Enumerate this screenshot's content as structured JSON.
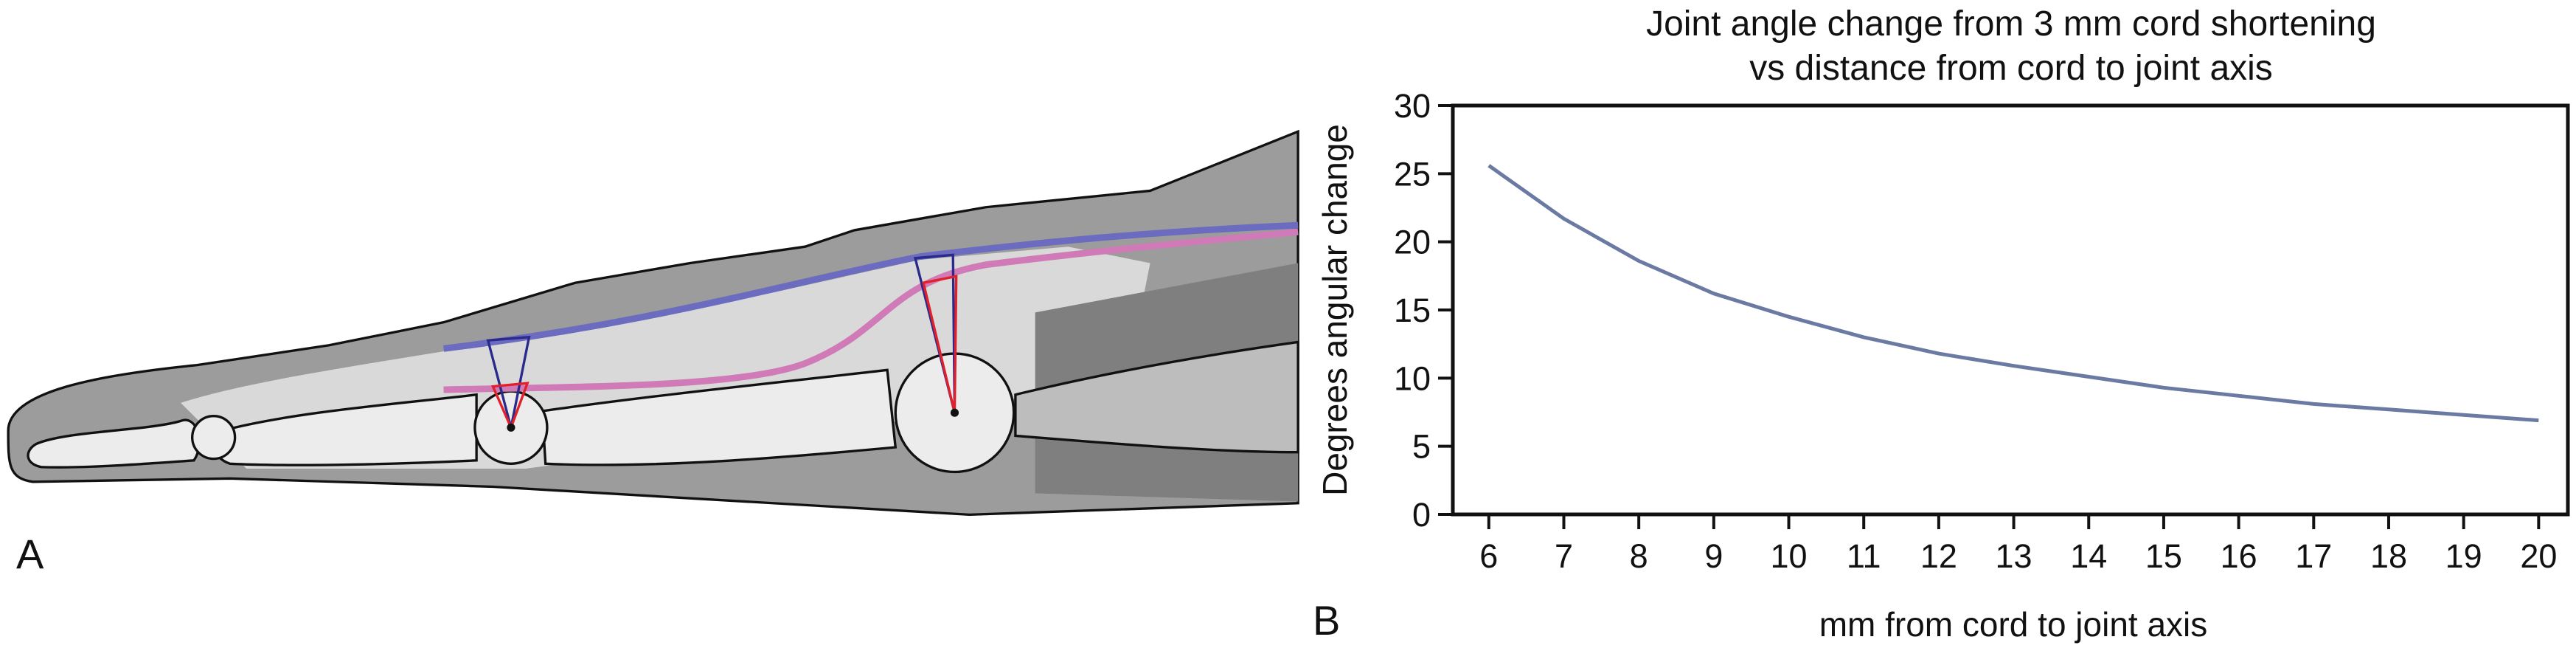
{
  "panel_labels": [
    "A",
    "B"
  ],
  "chart_data": {
    "type": "line",
    "title": [
      "Joint angle change from 3 mm cord shortening",
      "vs distance from cord to joint axis"
    ],
    "x_label": "mm from cord to joint axis",
    "y_label": "Degrees angular change",
    "x": [
      6,
      7,
      8,
      9,
      10,
      11,
      12,
      13,
      14,
      15,
      16,
      17,
      18,
      19,
      20
    ],
    "values": [
      25.6,
      21.7,
      18.6,
      16.2,
      14.5,
      13.0,
      11.8,
      10.9,
      10.1,
      9.3,
      8.7,
      8.1,
      7.7,
      7.3,
      6.9
    ],
    "color": "#6b7aa3",
    "xlim": [
      5.52,
      20.39
    ],
    "ylim": [
      0,
      30
    ],
    "xticks": [
      6,
      7,
      8,
      9,
      10,
      11,
      12,
      13,
      14,
      15,
      16,
      17,
      18,
      19,
      20
    ],
    "yticks": [
      0,
      5,
      10,
      15,
      20,
      25,
      30
    ]
  }
}
